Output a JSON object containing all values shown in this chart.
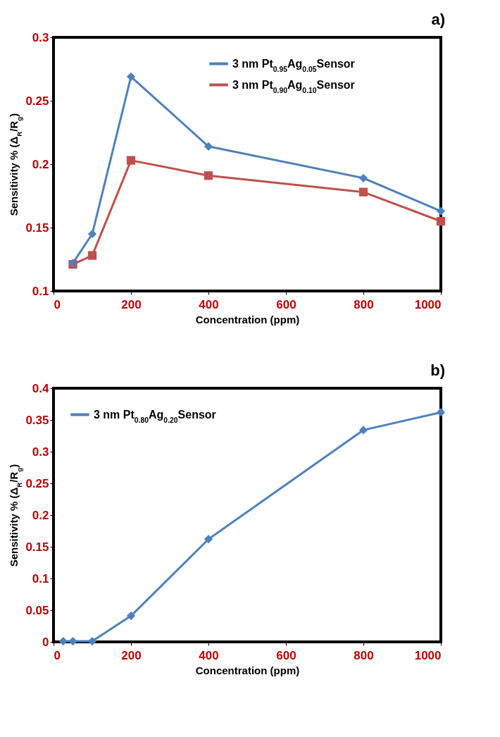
{
  "chart_data": [
    {
      "type": "line",
      "title": "a)",
      "xlabel": "Concentration (ppm)",
      "ylabel": "Sensitivity % (Δ$_{R}$/R$_{g}$)",
      "x": [
        50,
        100,
        200,
        400,
        800,
        1000
      ],
      "series": [
        {
          "name": "3 nm Pt$_{0.95}$Ag$_{0.05}$Sensor",
          "color": "#4f81bd",
          "marker": "diamond",
          "values": [
            0.122,
            0.145,
            0.269,
            0.214,
            0.189,
            0.163
          ]
        },
        {
          "name": "3 nm Pt$_{0.90}$Ag$_{0.10}$Sensor",
          "color": "#c0504d",
          "marker": "square",
          "values": [
            0.121,
            0.128,
            0.203,
            0.191,
            0.178,
            0.155
          ]
        }
      ],
      "xlim": [
        0,
        1000
      ],
      "xticks": [
        0,
        200,
        400,
        600,
        800,
        1000
      ],
      "ylim": [
        0.1,
        0.3
      ],
      "yticks": [
        {
          "value": 0.1,
          "label": "0.1"
        },
        0.15,
        {
          "value": 0.2,
          "label": "0.2"
        },
        0.25,
        {
          "value": 0.3,
          "label": "0.3"
        }
      ],
      "grid": false,
      "legend": "top right",
      "line_style": "solid"
    },
    {
      "type": "line",
      "title": "b)",
      "xlabel": "Concentration (ppm)",
      "ylabel": "Sensitivity % (Δ$_{R}$/R$_{g}$)",
      "x": [
        25,
        50,
        100,
        200,
        400,
        800,
        1000
      ],
      "series": [
        {
          "name": "3 nm Pt$_{0.80}$Ag$_{0.20}$Sensor",
          "color": "#4f81bd",
          "marker": "diamond",
          "values": [
            0.001,
            0.001,
            0.001,
            0.041,
            0.162,
            0.334,
            0.362
          ]
        }
      ],
      "xlim": [
        0,
        1000
      ],
      "xticks": [
        0,
        200,
        400,
        600,
        800,
        1000
      ],
      "ylim": [
        0,
        0.4
      ],
      "yticks": [
        0,
        0.05,
        {
          "value": 0.1,
          "label": "0.1"
        },
        0.15,
        {
          "value": 0.2,
          "label": "0.2"
        },
        0.25,
        {
          "value": 0.3,
          "label": "0.3"
        },
        0.35,
        {
          "value": 0.4,
          "label": "0.4"
        }
      ],
      "grid": false,
      "legend": "top left",
      "line_style": "solid"
    }
  ]
}
